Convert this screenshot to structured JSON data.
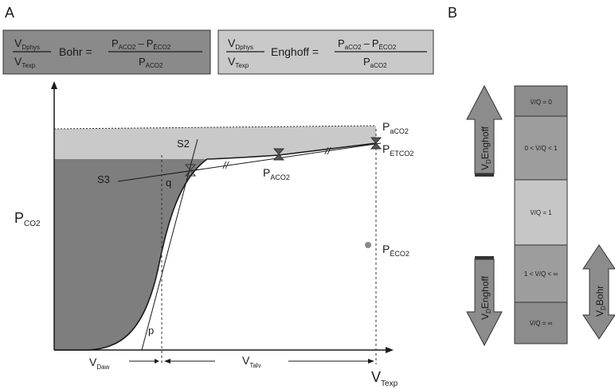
{
  "panel_a": {
    "letter": "A",
    "bohr_box": {
      "lhs_num": "V",
      "lhs_num_sub": "Dphys",
      "lhs_den": "V",
      "lhs_den_sub": "Texp",
      "name": "Bohr =",
      "rhs_num_a": "P",
      "rhs_num_a_sub": "ACO2",
      "minus": "–",
      "rhs_num_b": "P",
      "rhs_num_b_sub": "ĒCO2",
      "rhs_den": "P",
      "rhs_den_sub": "ACO2",
      "fill": "#8a8a8a"
    },
    "enghoff_box": {
      "lhs_num": "V",
      "lhs_num_sub": "Dphys",
      "lhs_den": "V",
      "lhs_den_sub": "Texp",
      "name": "Enghoff =",
      "rhs_num_a": "P",
      "rhs_num_a_sub": "aCO2",
      "minus": "–",
      "rhs_num_b": "P",
      "rhs_num_b_sub": "ĒCO2",
      "rhs_den": "P",
      "rhs_den_sub": "aCO2",
      "fill": "#c9c9c9"
    },
    "y_axis_label": "P",
    "y_axis_label_sub": "CO2",
    "x_axis_label": "V",
    "x_axis_label_sub": "Texp",
    "labels": {
      "paco2": "P",
      "paco2_sub": "aCO2",
      "petco2": "P",
      "petco2_sub": "ETCO2",
      "pAco2": "P",
      "pAco2_sub": "ACO2",
      "peco2": "P",
      "peco2_sub": "ĒCO2",
      "s2": "S2",
      "s3": "S3",
      "q": "q",
      "p": "p",
      "slash": "//",
      "vdaw": "V",
      "vdaw_sub": "Daw",
      "vtalv": "V",
      "vtalv_sub": "Talv"
    },
    "colors": {
      "dark_region": "#7e7e7e",
      "light_band": "#c9c9c9",
      "line": "#1a1a1a"
    }
  },
  "panel_b": {
    "letter": "B",
    "bins": [
      {
        "label": "V̇/Q̇ = 0",
        "fill": "#8c8c8c"
      },
      {
        "label": "0 < V̇/Q̇ < 1",
        "fill": "#9d9d9d"
      },
      {
        "label": "V̇/Q̇ = 1",
        "fill": "#c6c6c6"
      },
      {
        "label": "1 < V̇/Q̇ < ∞",
        "fill": "#9d9d9d"
      },
      {
        "label": "V̇/Q̇ = ∞",
        "fill": "#8c8c8c"
      }
    ],
    "arrow_enghoff_up": {
      "label": "V",
      "label_sub": "D",
      "name": "Enghoff"
    },
    "arrow_enghoff_down": {
      "label": "V",
      "label_sub": "D",
      "name": "Enghoff"
    },
    "arrow_bohr": {
      "label": "V",
      "label_sub": "D",
      "name": "Bohr"
    },
    "colors": {
      "arrow": "#8c8c8c"
    }
  }
}
